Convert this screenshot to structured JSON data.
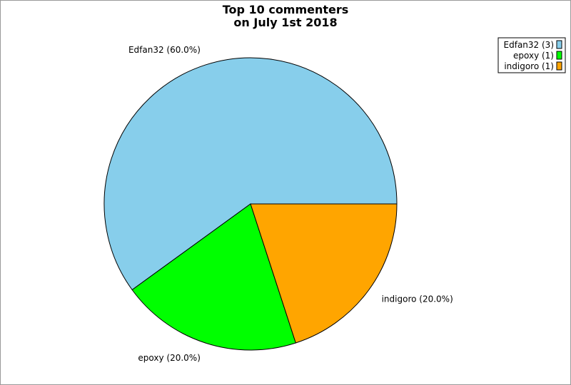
{
  "chart_data": {
    "type": "pie",
    "title": [
      "Top 10 commenters",
      "on July 1st 2018"
    ],
    "slices": [
      {
        "name": "Edfan32",
        "value": 3,
        "percent_label": "Edfan32 (60.0%)",
        "legend_label": "Edfan32 (3)",
        "color": "#87CEEB"
      },
      {
        "name": "epoxy",
        "value": 1,
        "percent_label": "epoxy (20.0%)",
        "legend_label": "epoxy (1)",
        "color": "#00FF00"
      },
      {
        "name": "indigoro",
        "value": 1,
        "percent_label": "indigoro (20.0%)",
        "legend_label": "indigoro (1)",
        "color": "#FFA500"
      }
    ],
    "legend_position": "top-right"
  }
}
